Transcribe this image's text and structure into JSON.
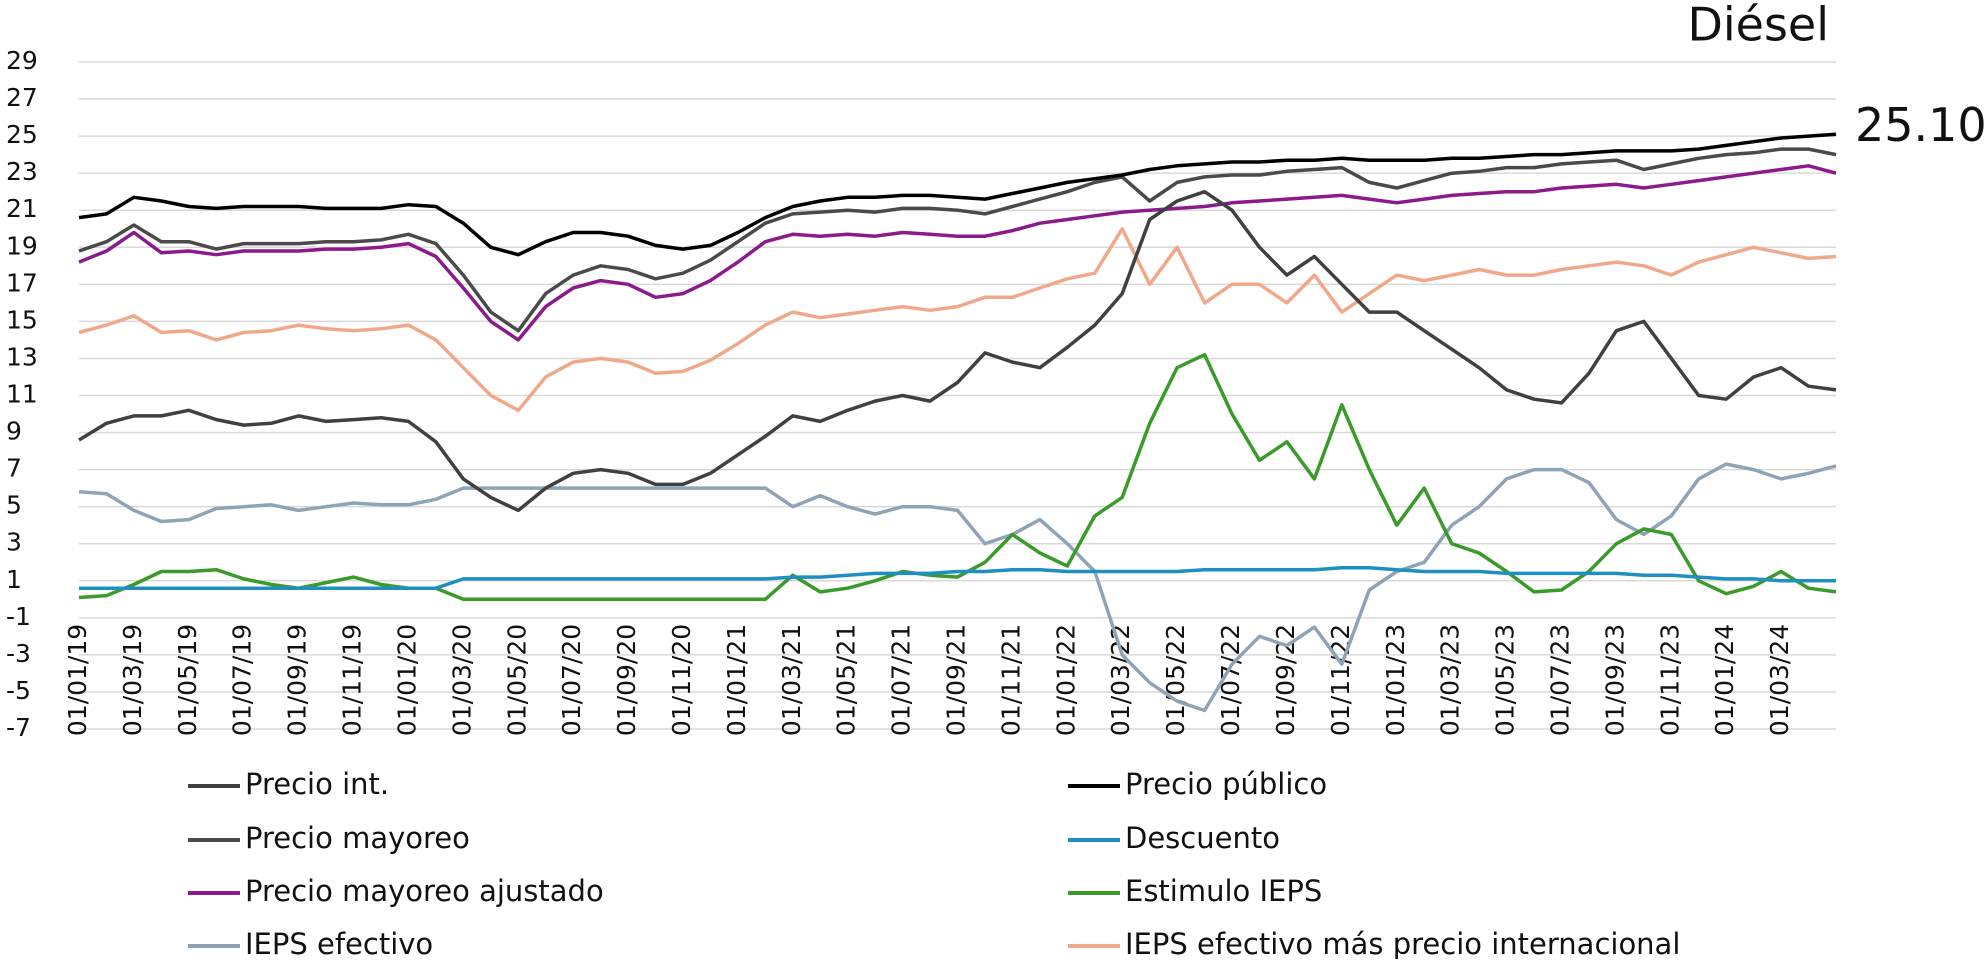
{
  "chart_data": {
    "type": "line",
    "title": "Diésel",
    "annotation": "25.10",
    "ylim": [
      -7,
      29
    ],
    "yticks": [
      -7,
      -5,
      -3,
      -1,
      1,
      3,
      5,
      7,
      9,
      11,
      13,
      15,
      17,
      19,
      21,
      23,
      25,
      27,
      29
    ],
    "grid": true,
    "legend": "bottom",
    "x": [
      "01/01/19",
      "01/02/19",
      "01/03/19",
      "01/04/19",
      "01/05/19",
      "01/06/19",
      "01/07/19",
      "01/08/19",
      "01/09/19",
      "01/10/19",
      "01/11/19",
      "01/12/19",
      "01/01/20",
      "01/02/20",
      "01/03/20",
      "01/04/20",
      "01/05/20",
      "01/06/20",
      "01/07/20",
      "01/08/20",
      "01/09/20",
      "01/10/20",
      "01/11/20",
      "01/12/20",
      "01/01/21",
      "01/02/21",
      "01/03/21",
      "01/04/21",
      "01/05/21",
      "01/06/21",
      "01/07/21",
      "01/08/21",
      "01/09/21",
      "01/10/21",
      "01/11/21",
      "01/12/21",
      "01/01/22",
      "01/02/22",
      "01/03/22",
      "01/04/22",
      "01/05/22",
      "01/06/22",
      "01/07/22",
      "01/08/22",
      "01/09/22",
      "01/10/22",
      "01/11/22",
      "01/12/22",
      "01/01/23",
      "01/02/23",
      "01/03/23",
      "01/04/23",
      "01/05/23",
      "01/06/23",
      "01/07/23",
      "01/08/23",
      "01/09/23",
      "01/10/23",
      "01/11/23",
      "01/12/23",
      "01/01/24",
      "01/02/24",
      "01/03/24",
      "01/04/24",
      "01/05/24"
    ],
    "xticks": [
      "01/01/19",
      "01/03/19",
      "01/05/19",
      "01/07/19",
      "01/09/19",
      "01/11/19",
      "01/01/20",
      "01/03/20",
      "01/05/20",
      "01/07/20",
      "01/09/20",
      "01/11/20",
      "01/01/21",
      "01/03/21",
      "01/05/21",
      "01/07/21",
      "01/09/21",
      "01/11/21",
      "01/01/22",
      "01/03/22",
      "01/05/22",
      "01/07/22",
      "01/09/22",
      "01/11/22",
      "01/01/23",
      "01/03/23",
      "01/05/23",
      "01/07/23",
      "01/09/23",
      "01/11/23",
      "01/01/24",
      "01/03/24"
    ],
    "series": [
      {
        "name": "Precio int.",
        "color": "#404040",
        "values": [
          8.6,
          9.5,
          9.9,
          9.9,
          10.2,
          9.7,
          9.4,
          9.5,
          9.9,
          9.6,
          9.7,
          9.8,
          9.6,
          8.5,
          6.5,
          5.5,
          4.8,
          6.0,
          6.8,
          7.0,
          6.8,
          6.2,
          6.2,
          6.8,
          7.8,
          8.8,
          9.9,
          9.6,
          10.2,
          10.7,
          11.0,
          10.7,
          11.7,
          13.3,
          12.8,
          12.5,
          13.6,
          14.8,
          16.5,
          20.5,
          21.5,
          22.0,
          21.0,
          19.0,
          17.5,
          18.5,
          17.0,
          15.5,
          15.5,
          14.5,
          13.5,
          12.5,
          11.3,
          10.8,
          10.6,
          12.2,
          14.5,
          15.0,
          13.0,
          11.0,
          10.8,
          12.0,
          12.5,
          11.5,
          11.3
        ]
      },
      {
        "name": "Precio público",
        "color": "#000000",
        "values": [
          20.6,
          20.8,
          21.7,
          21.5,
          21.2,
          21.1,
          21.2,
          21.2,
          21.2,
          21.1,
          21.1,
          21.1,
          21.3,
          21.2,
          20.3,
          19.0,
          18.6,
          19.3,
          19.8,
          19.8,
          19.6,
          19.1,
          18.9,
          19.1,
          19.8,
          20.6,
          21.2,
          21.5,
          21.7,
          21.7,
          21.8,
          21.8,
          21.7,
          21.6,
          21.9,
          22.2,
          22.5,
          22.7,
          22.9,
          23.2,
          23.4,
          23.5,
          23.6,
          23.6,
          23.7,
          23.7,
          23.8,
          23.7,
          23.7,
          23.7,
          23.8,
          23.8,
          23.9,
          24.0,
          24.0,
          24.1,
          24.2,
          24.2,
          24.2,
          24.3,
          24.5,
          24.7,
          24.9,
          25.0,
          25.1
        ]
      },
      {
        "name": "Precio mayoreo",
        "color": "#4a4a4a",
        "values": [
          18.8,
          19.3,
          20.2,
          19.3,
          19.3,
          18.9,
          19.2,
          19.2,
          19.2,
          19.3,
          19.3,
          19.4,
          19.7,
          19.2,
          17.5,
          15.5,
          14.5,
          16.5,
          17.5,
          18.0,
          17.8,
          17.3,
          17.6,
          18.3,
          19.3,
          20.3,
          20.8,
          20.9,
          21.0,
          20.9,
          21.1,
          21.1,
          21.0,
          20.8,
          21.2,
          21.6,
          22.0,
          22.5,
          22.8,
          21.5,
          22.5,
          22.8,
          22.9,
          22.9,
          23.1,
          23.2,
          23.3,
          22.5,
          22.2,
          22.6,
          23.0,
          23.1,
          23.3,
          23.3,
          23.5,
          23.6,
          23.7,
          23.2,
          23.5,
          23.8,
          24.0,
          24.1,
          24.3,
          24.3,
          24.0
        ]
      },
      {
        "name": "Descuento",
        "color": "#1f8fc0",
        "values": [
          0.6,
          0.6,
          0.6,
          0.6,
          0.6,
          0.6,
          0.6,
          0.6,
          0.6,
          0.6,
          0.6,
          0.6,
          0.6,
          0.6,
          1.1,
          1.1,
          1.1,
          1.1,
          1.1,
          1.1,
          1.1,
          1.1,
          1.1,
          1.1,
          1.1,
          1.1,
          1.2,
          1.2,
          1.3,
          1.4,
          1.4,
          1.4,
          1.5,
          1.5,
          1.6,
          1.6,
          1.5,
          1.5,
          1.5,
          1.5,
          1.5,
          1.6,
          1.6,
          1.6,
          1.6,
          1.6,
          1.7,
          1.7,
          1.6,
          1.5,
          1.5,
          1.5,
          1.4,
          1.4,
          1.4,
          1.4,
          1.4,
          1.3,
          1.3,
          1.2,
          1.1,
          1.1,
          1.0,
          1.0,
          1.0
        ]
      },
      {
        "name": "Precio mayoreo ajustado",
        "color": "#8b1a8b",
        "values": [
          18.2,
          18.8,
          19.8,
          18.7,
          18.8,
          18.6,
          18.8,
          18.8,
          18.8,
          18.9,
          18.9,
          19.0,
          19.2,
          18.5,
          16.8,
          15.0,
          14.0,
          15.8,
          16.8,
          17.2,
          17.0,
          16.3,
          16.5,
          17.2,
          18.2,
          19.3,
          19.7,
          19.6,
          19.7,
          19.6,
          19.8,
          19.7,
          19.6,
          19.6,
          19.9,
          20.3,
          20.5,
          20.7,
          20.9,
          21.0,
          21.1,
          21.2,
          21.4,
          21.5,
          21.6,
          21.7,
          21.8,
          21.6,
          21.4,
          21.6,
          21.8,
          21.9,
          22.0,
          22.0,
          22.2,
          22.3,
          22.4,
          22.2,
          22.4,
          22.6,
          22.8,
          23.0,
          23.2,
          23.4,
          23.0
        ]
      },
      {
        "name": "Estimulo IEPS",
        "color": "#3a9a2a",
        "values": [
          0.1,
          0.2,
          0.8,
          1.5,
          1.5,
          1.6,
          1.1,
          0.8,
          0.6,
          0.9,
          1.2,
          0.8,
          0.6,
          0.6,
          0,
          0,
          0,
          0,
          0,
          0,
          0,
          0,
          0,
          0,
          0,
          0,
          1.3,
          0.4,
          0.6,
          1.0,
          1.5,
          1.3,
          1.2,
          2.0,
          3.5,
          2.5,
          1.8,
          4.5,
          5.5,
          9.5,
          12.5,
          13.2,
          10.0,
          7.5,
          8.5,
          6.5,
          10.5,
          7.0,
          4.0,
          6.0,
          3.0,
          2.5,
          1.5,
          0.4,
          0.5,
          1.5,
          3.0,
          3.8,
          3.5,
          1.0,
          0.3,
          0.7,
          1.5,
          0.6,
          0.4
        ]
      },
      {
        "name": "IEPS efectivo",
        "color": "#8fa3b8",
        "values": [
          5.8,
          5.7,
          4.8,
          4.2,
          4.3,
          4.9,
          5.0,
          5.1,
          4.8,
          5.0,
          5.2,
          5.1,
          5.1,
          5.4,
          6.0,
          6.0,
          6.0,
          6.0,
          6.0,
          6.0,
          6.0,
          6.0,
          6.0,
          6.0,
          6.0,
          6.0,
          5.0,
          5.6,
          5.0,
          4.6,
          5.0,
          5.0,
          4.8,
          3.0,
          3.5,
          4.3,
          3.0,
          1.5,
          -3.0,
          -4.5,
          -5.5,
          -6.0,
          -3.5,
          -2.0,
          -2.5,
          -1.5,
          -3.5,
          0.5,
          1.5,
          2.0,
          4.0,
          5.0,
          6.5,
          7.0,
          7.0,
          6.3,
          4.3,
          3.5,
          4.5,
          6.5,
          7.3,
          7.0,
          6.5,
          6.8,
          7.2
        ]
      },
      {
        "name": "IEPS efectivo más precio internacional",
        "color": "#f0a88a",
        "values": [
          14.4,
          14.8,
          15.3,
          14.4,
          14.5,
          14.0,
          14.4,
          14.5,
          14.8,
          14.6,
          14.5,
          14.6,
          14.8,
          14.0,
          12.5,
          11.0,
          10.2,
          12.0,
          12.8,
          13.0,
          12.8,
          12.2,
          12.3,
          12.9,
          13.8,
          14.8,
          15.5,
          15.2,
          15.4,
          15.6,
          15.8,
          15.6,
          15.8,
          16.3,
          16.3,
          16.8,
          17.3,
          17.6,
          20.0,
          17.0,
          19.0,
          16.0,
          17.0,
          17.0,
          16.0,
          17.5,
          15.5,
          16.5,
          17.5,
          17.2,
          17.5,
          17.8,
          17.5,
          17.5,
          17.8,
          18.0,
          18.2,
          18.0,
          17.5,
          18.2,
          18.6,
          19.0,
          18.7,
          18.4,
          18.5
        ]
      }
    ]
  }
}
